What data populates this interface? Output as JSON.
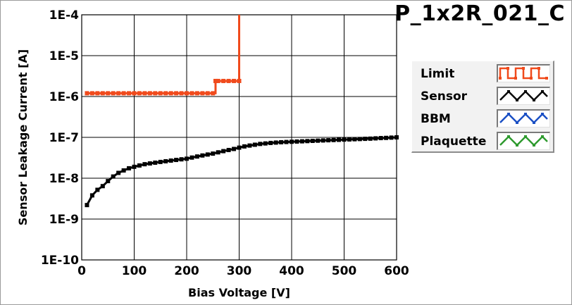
{
  "chart_data": {
    "type": "line",
    "title": "P_1x2R_021_C",
    "xlabel": "Bias Voltage [V]",
    "ylabel": "Sensor Leakage Current [A]",
    "xlim": [
      0,
      600
    ],
    "ylim": [
      1e-10,
      0.0001
    ],
    "yscale": "log",
    "grid": true,
    "legend_position": "right",
    "x_ticks": [
      0,
      100,
      200,
      300,
      400,
      500,
      600
    ],
    "x_tick_labels": [
      "0",
      "100",
      "200",
      "300",
      "400",
      "500",
      "600"
    ],
    "y_ticks": [
      1e-10,
      1e-09,
      1e-08,
      1e-07,
      1e-06,
      1e-05,
      0.0001
    ],
    "y_tick_labels": [
      "1E-10",
      "1E-9",
      "1E-8",
      "1E-7",
      "1E-6",
      "1E-5",
      "1E-4"
    ],
    "series": [
      {
        "name": "Limit",
        "color": "#f04a1c",
        "x": [
          10,
          20,
          30,
          40,
          50,
          60,
          70,
          80,
          90,
          100,
          110,
          120,
          130,
          140,
          150,
          160,
          170,
          180,
          190,
          200,
          210,
          220,
          230,
          240,
          250,
          255,
          260,
          270,
          280,
          290,
          300,
          300
        ],
        "y": [
          1.2e-06,
          1.2e-06,
          1.2e-06,
          1.2e-06,
          1.2e-06,
          1.2e-06,
          1.2e-06,
          1.2e-06,
          1.2e-06,
          1.2e-06,
          1.2e-06,
          1.2e-06,
          1.2e-06,
          1.2e-06,
          1.2e-06,
          1.2e-06,
          1.2e-06,
          1.2e-06,
          1.2e-06,
          1.2e-06,
          1.2e-06,
          1.2e-06,
          1.2e-06,
          1.2e-06,
          1.2e-06,
          2.4e-06,
          2.4e-06,
          2.4e-06,
          2.4e-06,
          2.4e-06,
          2.4e-06,
          0.0001
        ]
      },
      {
        "name": "Sensor",
        "color": "#000000",
        "x": [
          10,
          20,
          30,
          40,
          50,
          60,
          70,
          80,
          90,
          100,
          110,
          120,
          130,
          140,
          150,
          160,
          170,
          180,
          190,
          200,
          210,
          220,
          230,
          240,
          250,
          260,
          270,
          280,
          290,
          300,
          310,
          320,
          330,
          340,
          350,
          360,
          370,
          380,
          390,
          400,
          410,
          420,
          430,
          440,
          450,
          460,
          470,
          480,
          490,
          500,
          510,
          520,
          530,
          540,
          550,
          560,
          570,
          580,
          590,
          600
        ],
        "y": [
          2.2e-09,
          3.8e-09,
          5.2e-09,
          6.4e-09,
          8.5e-09,
          1.1e-08,
          1.35e-08,
          1.55e-08,
          1.75e-08,
          1.9e-08,
          2.05e-08,
          2.2e-08,
          2.3e-08,
          2.4e-08,
          2.5e-08,
          2.6e-08,
          2.7e-08,
          2.8e-08,
          2.9e-08,
          3e-08,
          3.2e-08,
          3.4e-08,
          3.6e-08,
          3.8e-08,
          4e-08,
          4.3e-08,
          4.6e-08,
          4.9e-08,
          5.2e-08,
          5.6e-08,
          6e-08,
          6.3e-08,
          6.6e-08,
          6.9e-08,
          7.1e-08,
          7.3e-08,
          7.45e-08,
          7.6e-08,
          7.7e-08,
          7.8e-08,
          7.9e-08,
          8e-08,
          8.1e-08,
          8.2e-08,
          8.3e-08,
          8.4e-08,
          8.5e-08,
          8.6e-08,
          8.7e-08,
          8.8e-08,
          8.9e-08,
          9e-08,
          9.1e-08,
          9.2e-08,
          9.3e-08,
          9.45e-08,
          9.6e-08,
          9.7e-08,
          9.85e-08,
          1e-07
        ]
      }
    ],
    "legend": [
      {
        "label": "Limit",
        "color": "#f04a1c",
        "icon": "square-wave"
      },
      {
        "label": "Sensor",
        "color": "#000000",
        "icon": "triangle-wave"
      },
      {
        "label": "BBM",
        "color": "#1a4fc4",
        "icon": "triangle-wave"
      },
      {
        "label": "Plaquette",
        "color": "#2e9a2e",
        "icon": "triangle-wave"
      }
    ]
  }
}
